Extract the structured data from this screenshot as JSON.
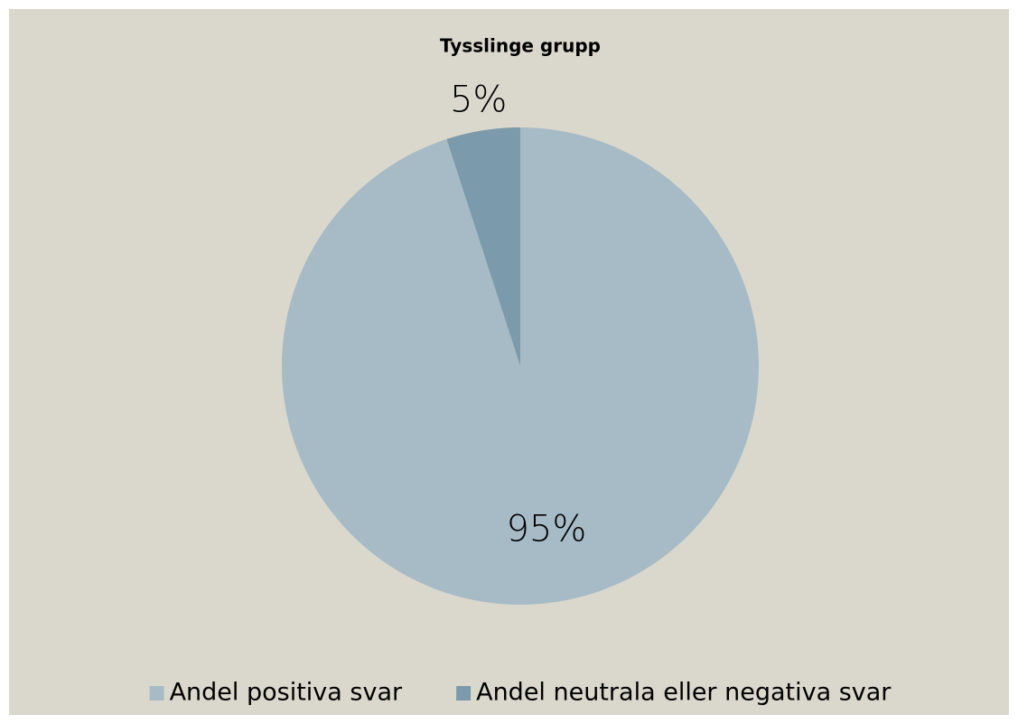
{
  "chart_data": {
    "type": "pie",
    "title": "Tysslinge grupp",
    "categories": [
      "Andel positiva svar",
      "Andel neutrala eller negativa svar"
    ],
    "values": [
      95,
      5
    ],
    "value_labels": [
      "95%",
      "5%"
    ],
    "colors": [
      "#a7bbc6",
      "#7b9aab"
    ],
    "legend": "bottom"
  }
}
